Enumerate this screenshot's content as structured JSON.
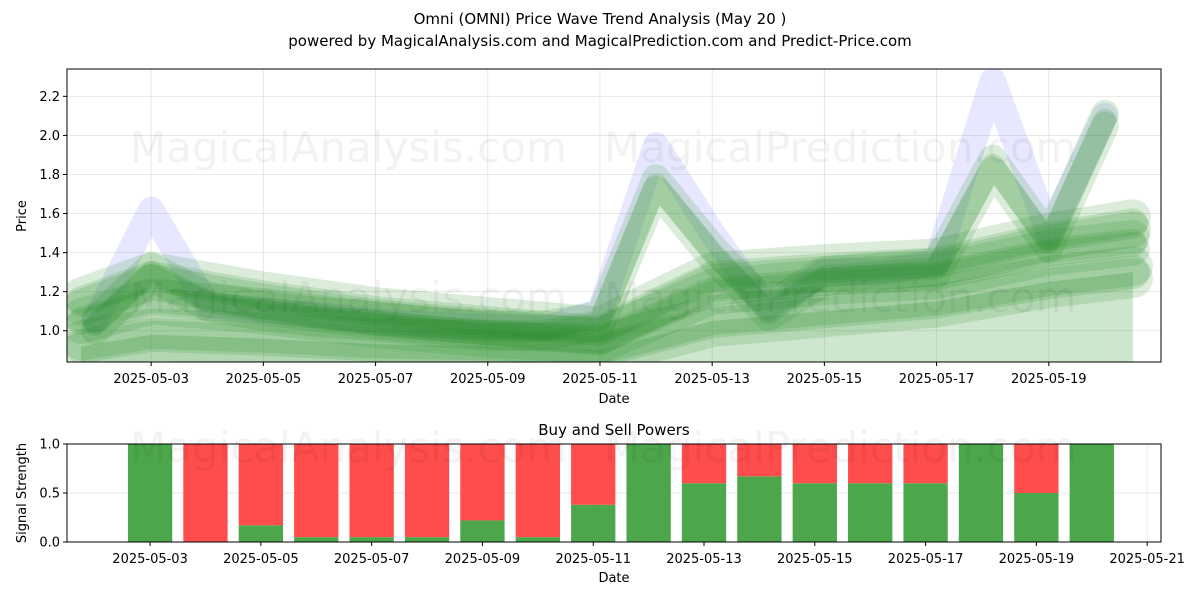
{
  "title_line1": "Omni (OMNI) Price Wave Trend Analysis (May 20 )",
  "title_line2": "powered by MagicalAnalysis.com and MagicalPrediction.com and Predict-Price.com",
  "watermarks": [
    "MagicalAnalysis.com",
    "MagicalPrediction.com"
  ],
  "colors": {
    "green": "#228B22",
    "blue": "#7B7BFF",
    "buy": "#4CA64C",
    "sell": "#FF4C4C"
  },
  "chart_data": [
    {
      "type": "area",
      "title": "",
      "xlabel": "Date",
      "ylabel": "Price",
      "x_ticks": [
        "2025-05-03",
        "2025-05-05",
        "2025-05-07",
        "2025-05-09",
        "2025-05-11",
        "2025-05-13",
        "2025-05-15",
        "2025-05-17",
        "2025-05-19"
      ],
      "y_ticks": [
        1.0,
        1.2,
        1.4,
        1.6,
        1.8,
        2.0,
        2.2
      ],
      "ylim": [
        0.84,
        2.34
      ],
      "xlim": [
        "2025-05-01T12:00",
        "2025-05-21T00:00"
      ],
      "grid": true,
      "series": [
        {
          "x": [
            "2025-05-02",
            "2025-05-03",
            "2025-05-04",
            "2025-05-05",
            "2025-05-06",
            "2025-05-07",
            "2025-05-08",
            "2025-05-09",
            "2025-05-10",
            "2025-05-11",
            "2025-05-12",
            "2025-05-13",
            "2025-05-14",
            "2025-05-15",
            "2025-05-16",
            "2025-05-17",
            "2025-05-18",
            "2025-05-19",
            "2025-05-20"
          ],
          "values": [
            1.05,
            1.62,
            1.13,
            1.1,
            1.08,
            1.05,
            1.03,
            1.02,
            1.01,
            1.1,
            1.95,
            1.5,
            1.1,
            1.3,
            1.3,
            1.35,
            2.28,
            1.5,
            2.1
          ]
        },
        {
          "x": [
            "2025-05-02",
            "2025-05-03",
            "2025-05-04",
            "2025-05-05",
            "2025-05-06",
            "2025-05-07",
            "2025-05-08",
            "2025-05-09",
            "2025-05-10",
            "2025-05-11",
            "2025-05-12",
            "2025-05-13",
            "2025-05-14",
            "2025-05-15",
            "2025-05-16",
            "2025-05-17",
            "2025-05-18",
            "2025-05-19",
            "2025-05-20"
          ],
          "values": [
            1.03,
            1.3,
            1.15,
            1.1,
            1.07,
            1.05,
            1.02,
            1.0,
            1.0,
            1.05,
            1.75,
            1.4,
            1.1,
            1.28,
            1.3,
            1.32,
            1.85,
            1.45,
            2.08
          ]
        },
        {
          "x": [
            "2025-05-01T18:00",
            "2025-05-03",
            "2025-05-05",
            "2025-05-07",
            "2025-05-09",
            "2025-05-11",
            "2025-05-13",
            "2025-05-15",
            "2025-05-17",
            "2025-05-19",
            "2025-05-20T12:00"
          ],
          "values": [
            1.15,
            1.28,
            1.18,
            1.1,
            1.05,
            1.0,
            1.28,
            1.32,
            1.35,
            1.48,
            1.55
          ]
        },
        {
          "x": [
            "2025-05-01T18:00",
            "2025-05-03",
            "2025-05-05",
            "2025-05-07",
            "2025-05-09",
            "2025-05-11",
            "2025-05-13",
            "2025-05-15",
            "2025-05-17",
            "2025-05-19",
            "2025-05-20T12:00"
          ],
          "values": [
            1.05,
            1.15,
            1.1,
            1.03,
            0.98,
            0.95,
            1.2,
            1.25,
            1.28,
            1.4,
            1.45
          ]
        },
        {
          "x": [
            "2025-05-01T18:00",
            "2025-05-03",
            "2025-05-05",
            "2025-05-07",
            "2025-05-09",
            "2025-05-11",
            "2025-05-13",
            "2025-05-15",
            "2025-05-17",
            "2025-05-19",
            "2025-05-20T12:00"
          ],
          "values": [
            0.92,
            0.98,
            0.96,
            0.93,
            0.92,
            0.9,
            1.05,
            1.1,
            1.15,
            1.25,
            1.3
          ]
        }
      ]
    },
    {
      "type": "bar",
      "title": "Buy and Sell Powers",
      "xlabel": "Date",
      "ylabel": "Signal Strength",
      "x_ticks": [
        "2025-05-03",
        "2025-05-05",
        "2025-05-07",
        "2025-05-09",
        "2025-05-11",
        "2025-05-13",
        "2025-05-15",
        "2025-05-17",
        "2025-05-19",
        "2025-05-21"
      ],
      "y_ticks": [
        0.0,
        0.5,
        1.0
      ],
      "ylim": [
        0,
        1
      ],
      "xlim": [
        "2025-05-01T12:00",
        "2025-05-21T06:00"
      ],
      "grid": true,
      "categories": [
        "2025-05-03",
        "2025-05-04",
        "2025-05-05",
        "2025-05-06",
        "2025-05-07",
        "2025-05-08",
        "2025-05-09",
        "2025-05-10",
        "2025-05-11",
        "2025-05-12",
        "2025-05-13",
        "2025-05-14",
        "2025-05-15",
        "2025-05-16",
        "2025-05-17",
        "2025-05-18",
        "2025-05-19",
        "2025-05-20"
      ],
      "series": [
        {
          "name": "Buy",
          "values": [
            1.0,
            0.0,
            0.17,
            0.05,
            0.05,
            0.05,
            0.22,
            0.05,
            0.38,
            1.0,
            0.6,
            0.67,
            0.6,
            0.6,
            0.6,
            1.0,
            0.5,
            1.0
          ]
        },
        {
          "name": "Sell",
          "values": [
            0.0,
            1.0,
            0.83,
            0.95,
            0.95,
            0.95,
            0.78,
            0.95,
            0.62,
            0.0,
            0.4,
            0.33,
            0.4,
            0.4,
            0.4,
            0.0,
            0.5,
            0.0
          ]
        }
      ]
    }
  ]
}
